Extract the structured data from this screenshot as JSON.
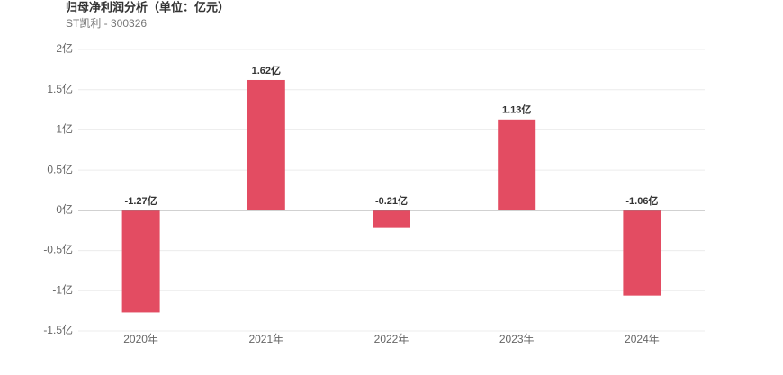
{
  "chart_data": {
    "type": "bar",
    "title": "归母净利润分析（单位：亿元）",
    "subtitle": "ST凯利 - 300326",
    "categories": [
      "2020年",
      "2021年",
      "2022年",
      "2023年",
      "2024年"
    ],
    "values": [
      -1.27,
      1.62,
      -0.21,
      1.13,
      -1.06
    ],
    "value_labels": [
      "-1.27亿",
      "1.62亿",
      "-0.21亿",
      "1.13亿",
      "-1.06亿"
    ],
    "color": "#e34c62",
    "ylim": [
      -1.5,
      2
    ],
    "yticks": [
      {
        "value": -1.5,
        "label": "-1.5亿"
      },
      {
        "value": -1,
        "label": "-1亿"
      },
      {
        "value": -0.5,
        "label": "-0.5亿"
      },
      {
        "value": 0,
        "label": "0亿"
      },
      {
        "value": 0.5,
        "label": "0.5亿"
      },
      {
        "value": 1,
        "label": "1亿"
      },
      {
        "value": 1.5,
        "label": "1.5亿"
      },
      {
        "value": 2,
        "label": "2亿"
      }
    ],
    "grid": true
  }
}
